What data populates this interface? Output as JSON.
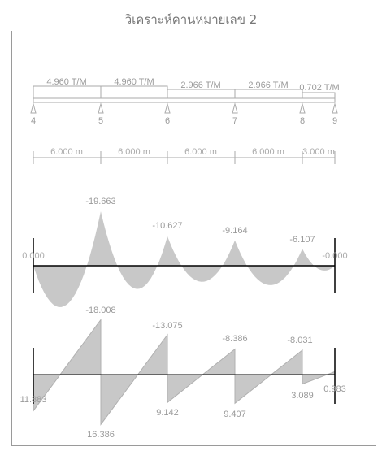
{
  "title": "วิเคราะห์คานหมายเลข 2",
  "loads": [
    "4.960 T/M",
    "4.960 T/M",
    "2.966 T/M",
    "2.966 T/M",
    "0.702 T/M"
  ],
  "supports": [
    "4",
    "5",
    "6",
    "7",
    "8",
    "9"
  ],
  "spans": [
    "6.000 m",
    "6.000 m",
    "6.000 m",
    "6.000 m",
    "3.000 m"
  ],
  "moment_labels": [
    "0.000",
    "-19.663",
    "-10.627",
    "-9.164",
    "-6.107",
    "-0.000"
  ],
  "shear_labels": [
    "11.883",
    "-18.008",
    "16.386",
    "-13.075",
    "9.142",
    "-8.386",
    "9.407",
    "-8.031",
    "3.089",
    "0.983"
  ],
  "colors": {
    "fill": "#c8c8c8",
    "line": "#aaaaaa",
    "label": "#9a9a9a",
    "axis": "#000000"
  }
}
